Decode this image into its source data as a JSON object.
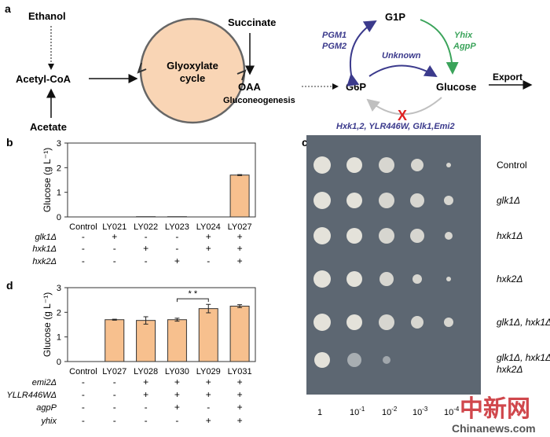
{
  "panel_labels": {
    "a": "a",
    "b": "b",
    "c": "c",
    "d": "d"
  },
  "pathway": {
    "ethanol": "Ethanol",
    "acetyl_coa": "Acetyl-CoA",
    "acetate": "Acetate",
    "cycle_line1": "Glyoxylate",
    "cycle_line2": "cycle",
    "succinate": "Succinate",
    "oaa": "OAA",
    "gluconeogenesis": "Gluconeogenesis",
    "g6p": "G6P",
    "g1p": "G1P",
    "glucose": "Glucose",
    "export": "Export",
    "pgm1": "PGM1",
    "pgm2": "PGM2",
    "yhix": "Yhix",
    "agpp": "AgpP",
    "unknown": "Unknown",
    "blocked_mark": "X",
    "blocked_enzymes": "Hxk1,2, YLR446W, Glk1,Emi2",
    "colors": {
      "enzyme": "#3b3a8c",
      "green": "#3aa35a",
      "blocked": "#e02020",
      "reverse": "#c0c0c0",
      "cycle_fill": "#f9d5b5"
    }
  },
  "chart_data": [
    {
      "type": "bar",
      "panel": "b",
      "ylabel": "Glucose (g L⁻¹)",
      "ylim": [
        0,
        3
      ],
      "yticks": [
        "0",
        "1",
        "2",
        "3"
      ],
      "categories": [
        "Control",
        "LY021",
        "LY022",
        "LY023",
        "LY024",
        "LY027"
      ],
      "values": [
        0,
        0,
        0.01,
        0.01,
        0,
        1.7
      ],
      "errors": [
        0,
        0,
        0,
        0,
        0,
        0.02
      ],
      "bar_color": "#f7c08e",
      "genotype_rows": [
        {
          "label": "glk1Δ",
          "marks": [
            "-",
            "+",
            "-",
            "-",
            "+",
            "+"
          ]
        },
        {
          "label": "hxk1Δ",
          "marks": [
            "-",
            "-",
            "+",
            "-",
            "+",
            "+"
          ]
        },
        {
          "label": "hxk2Δ",
          "marks": [
            "-",
            "-",
            "-",
            "+",
            "-",
            "+"
          ]
        }
      ]
    },
    {
      "type": "bar",
      "panel": "d",
      "ylabel": "Glucose (g L⁻¹)",
      "ylim": [
        0,
        3
      ],
      "yticks": [
        "0",
        "1",
        "2",
        "3"
      ],
      "categories": [
        "Control",
        "LY027",
        "LY028",
        "LY030",
        "LY029",
        "LY031"
      ],
      "values": [
        0,
        1.7,
        1.67,
        1.7,
        2.15,
        2.25
      ],
      "errors": [
        0,
        0.02,
        0.15,
        0.06,
        0.17,
        0.06
      ],
      "bar_color": "#f7c08e",
      "significance": {
        "between": [
          "LY030",
          "LY029"
        ],
        "label": "* *"
      },
      "genotype_rows": [
        {
          "label": "emi2Δ",
          "marks": [
            "-",
            "-",
            "+",
            "+",
            "+",
            "+"
          ]
        },
        {
          "label": "YLLR446WΔ",
          "marks": [
            "-",
            "-",
            "+",
            "+",
            "+",
            "+"
          ]
        },
        {
          "label": "agpP",
          "marks": [
            "-",
            "-",
            "-",
            "+",
            "-",
            "+"
          ]
        },
        {
          "label": "yhix",
          "marks": [
            "-",
            "-",
            "-",
            "-",
            "+",
            "+"
          ]
        }
      ]
    }
  ],
  "spot_assay": {
    "strains": [
      "Control",
      "glk1Δ",
      "hxk1Δ",
      "hxk2Δ",
      "glk1Δ, hxk1Δ",
      "glk1Δ, hxk1Δ",
      "hxk2Δ"
    ],
    "dilutions": [
      {
        "base": "1",
        "exp": ""
      },
      {
        "base": "10",
        "exp": "-1"
      },
      {
        "base": "10",
        "exp": "-2"
      },
      {
        "base": "10",
        "exp": "-3"
      },
      {
        "base": "10",
        "exp": "-4"
      }
    ]
  },
  "watermark": {
    "cn": "中新网",
    "en": "Chinanews.com"
  }
}
